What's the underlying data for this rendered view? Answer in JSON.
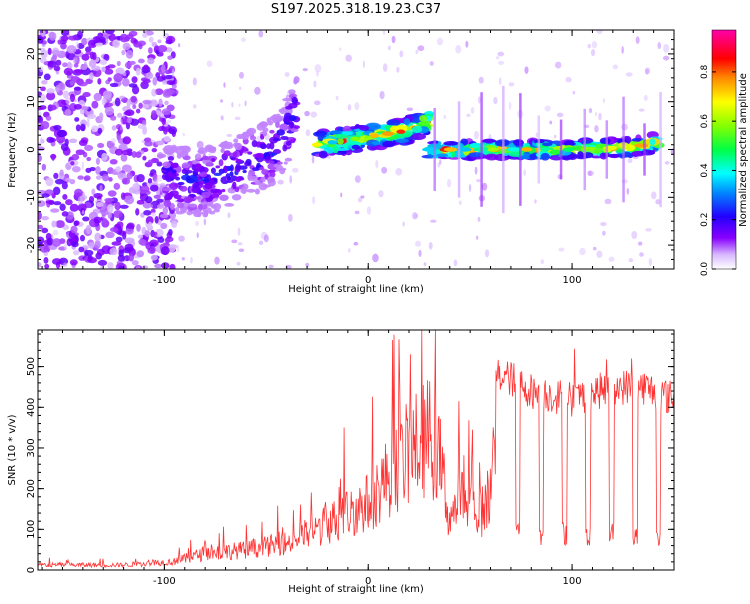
{
  "title": "S197.2025.318.19.23.C37",
  "chart_data": [
    {
      "type": "heatmap",
      "title": "S197.2025.318.19.23.C37",
      "xlabel": "Height of straight line (km)",
      "ylabel": "Frequency (Hz)",
      "xlim": [
        -162,
        150
      ],
      "ylim": [
        -25,
        25
      ],
      "xticks": [
        -100,
        0,
        100
      ],
      "yticks": [
        -20,
        -10,
        0,
        10,
        20
      ],
      "colorbar": {
        "label": "Normalized spectral amplitude",
        "range": [
          0.0,
          0.97
        ],
        "ticks": [
          0.0,
          0.2,
          0.4,
          0.6,
          0.8
        ],
        "tick_labels": [
          "0.0",
          "0.2",
          "0.4",
          "0.6",
          "0.8"
        ],
        "colormap": [
          "#ffffff",
          "#8800ff",
          "#2200ff",
          "#00ffff",
          "#00ff00",
          "#ffff00",
          "#ff8800",
          "#ff0000",
          "#ff00aa"
        ]
      },
      "features": [
        {
          "name": "noise-cloud",
          "x_range": [
            -162,
            -95
          ],
          "freq_range": [
            -25,
            25
          ],
          "amplitude": 0.1
        },
        {
          "name": "rising-trace-1",
          "x": [
            -100,
            -80,
            -60,
            -45,
            -35
          ],
          "freq": [
            -6,
            -7,
            -3,
            0,
            8
          ],
          "amplitude": 0.25
        },
        {
          "name": "rising-trace-2",
          "x": [
            -25,
            -10,
            5,
            20,
            30
          ],
          "freq": [
            1,
            2,
            3,
            4,
            6
          ],
          "amplitude": 0.85
        },
        {
          "name": "flat-trace",
          "x": [
            30,
            60,
            100,
            130,
            142
          ],
          "freq": [
            0,
            0,
            0,
            0.5,
            1.5
          ],
          "amplitude": 0.85
        }
      ]
    },
    {
      "type": "line",
      "xlabel": "Height of straight line (km)",
      "ylabel": "SNR (10 * v/v)",
      "xlim": [
        -162,
        150
      ],
      "ylim": [
        0,
        590
      ],
      "xticks": [
        -100,
        0,
        100
      ],
      "yticks": [
        0,
        100,
        200,
        300,
        400,
        500
      ],
      "color": "#ff3333",
      "envelope": {
        "x": [
          -162,
          -120,
          -95,
          -80,
          -60,
          -40,
          -25,
          -10,
          0,
          10,
          20,
          30,
          35,
          40,
          45,
          50,
          55,
          60,
          63,
          70,
          80,
          100,
          120,
          135,
          150
        ],
        "y": [
          15,
          15,
          25,
          50,
          60,
          80,
          120,
          170,
          200,
          280,
          350,
          400,
          330,
          150,
          220,
          190,
          170,
          230,
          480,
          470,
          440,
          420,
          450,
          450,
          420
        ]
      }
    }
  ]
}
